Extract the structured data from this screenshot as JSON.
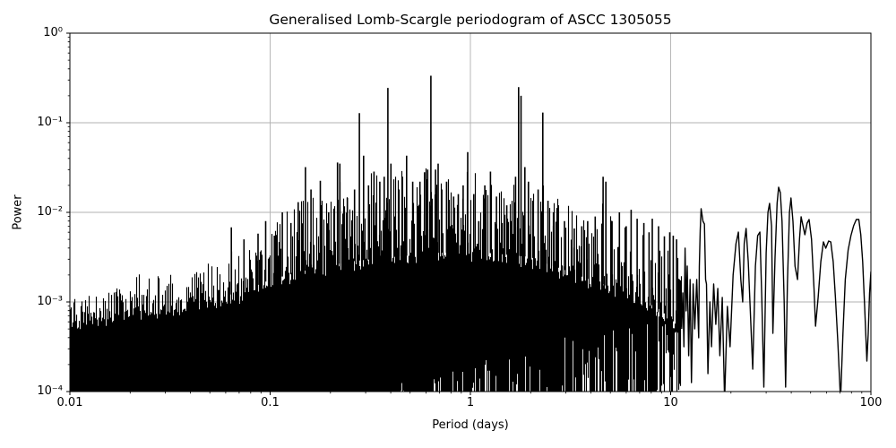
{
  "chart_data": {
    "type": "line",
    "title": "Generalised Lomb-Scargle periodogram of ASCC 1305055",
    "xlabel": "Period (days)",
    "ylabel": "Power",
    "xscale": "log",
    "yscale": "log",
    "xlim": [
      0.01,
      100
    ],
    "ylim": [
      0.0001,
      1.0
    ],
    "grid": true,
    "background": "#ffffff",
    "line_color": "#000000",
    "grid_color": "#b0b0b0",
    "x_ticks": [
      {
        "value": 0.01,
        "label": "0.01"
      },
      {
        "value": 0.1,
        "label": "0.1"
      },
      {
        "value": 1,
        "label": "1"
      },
      {
        "value": 10,
        "label": "10"
      },
      {
        "value": 100,
        "label": "100"
      }
    ],
    "y_ticks": [
      {
        "value": 1,
        "label": "10⁰"
      },
      {
        "value": 0.1,
        "label": "10⁻¹"
      },
      {
        "value": 0.01,
        "label": "10⁻²"
      },
      {
        "value": 0.001,
        "label": "10⁻³"
      },
      {
        "value": 0.0001,
        "label": "10⁻⁴"
      }
    ],
    "strongest_peak": {
      "period_days": 0.635,
      "power": 0.335
    },
    "main_peaks": [
      [
        0.064,
        0.0068
      ],
      [
        0.074,
        0.005
      ],
      [
        0.087,
        0.0058
      ],
      [
        0.095,
        0.008
      ],
      [
        0.105,
        0.0055
      ],
      [
        0.115,
        0.01
      ],
      [
        0.127,
        0.0076
      ],
      [
        0.138,
        0.013
      ],
      [
        0.15,
        0.032
      ],
      [
        0.16,
        0.018
      ],
      [
        0.178,
        0.0225
      ],
      [
        0.196,
        0.01
      ],
      [
        0.217,
        0.036
      ],
      [
        0.223,
        0.035
      ],
      [
        0.243,
        0.0145
      ],
      [
        0.264,
        0.018
      ],
      [
        0.279,
        0.128
      ],
      [
        0.293,
        0.043
      ],
      [
        0.31,
        0.02
      ],
      [
        0.33,
        0.0285
      ],
      [
        0.353,
        0.022
      ],
      [
        0.371,
        0.025
      ],
      [
        0.387,
        0.245
      ],
      [
        0.401,
        0.035
      ],
      [
        0.42,
        0.009
      ],
      [
        0.44,
        0.018
      ],
      [
        0.458,
        0.025
      ],
      [
        0.48,
        0.043
      ],
      [
        0.515,
        0.022
      ],
      [
        0.56,
        0.022
      ],
      [
        0.59,
        0.028
      ],
      [
        0.612,
        0.03
      ],
      [
        0.635,
        0.335
      ],
      [
        0.67,
        0.03
      ],
      [
        0.69,
        0.035
      ],
      [
        0.72,
        0.018
      ],
      [
        0.76,
        0.022
      ],
      [
        0.825,
        0.015
      ],
      [
        0.87,
        0.016
      ],
      [
        0.92,
        0.02
      ],
      [
        0.97,
        0.047
      ],
      [
        1.04,
        0.016
      ],
      [
        1.1,
        0.008
      ],
      [
        1.18,
        0.02
      ],
      [
        1.26,
        0.0285
      ],
      [
        1.35,
        0.015
      ],
      [
        1.44,
        0.0076
      ],
      [
        1.52,
        0.012
      ],
      [
        1.6,
        0.008
      ],
      [
        1.68,
        0.025
      ],
      [
        1.74,
        0.25
      ],
      [
        1.79,
        0.2
      ],
      [
        1.87,
        0.032
      ],
      [
        1.95,
        0.022
      ],
      [
        2.05,
        0.0135
      ],
      [
        2.18,
        0.018
      ],
      [
        2.3,
        0.13
      ],
      [
        2.44,
        0.0135
      ],
      [
        2.6,
        0.01
      ],
      [
        2.75,
        0.012
      ],
      [
        2.95,
        0.008
      ],
      [
        3.3,
        0.0066
      ],
      [
        3.6,
        0.007
      ],
      [
        3.85,
        0.008
      ],
      [
        4.2,
        0.009
      ],
      [
        4.6,
        0.025
      ],
      [
        4.75,
        0.022
      ],
      [
        5.1,
        0.008
      ],
      [
        5.55,
        0.01
      ],
      [
        6.0,
        0.007
      ],
      [
        6.35,
        0.0107
      ],
      [
        6.8,
        0.0085
      ],
      [
        7.35,
        0.0076
      ],
      [
        7.8,
        0.006
      ],
      [
        8.1,
        0.0085
      ],
      [
        8.7,
        0.007
      ],
      [
        9.3,
        0.0054
      ],
      [
        9.9,
        0.006
      ],
      [
        10.3,
        0.0055
      ],
      [
        10.7,
        0.005
      ]
    ],
    "noise_envelope_log10": [
      [
        0.01,
        -2.95
      ],
      [
        0.016,
        -2.85
      ],
      [
        0.021,
        -2.7
      ],
      [
        0.03,
        -2.68
      ],
      [
        0.045,
        -2.58
      ],
      [
        0.06,
        -2.42
      ],
      [
        0.08,
        -2.38
      ],
      [
        0.1,
        -2.15
      ],
      [
        0.13,
        -1.95
      ],
      [
        0.165,
        -1.78
      ],
      [
        0.21,
        -1.65
      ],
      [
        0.27,
        -1.6
      ],
      [
        0.35,
        -1.55
      ],
      [
        0.45,
        -1.5
      ],
      [
        0.6,
        -1.52
      ],
      [
        0.75,
        -1.62
      ],
      [
        0.95,
        -1.55
      ],
      [
        1.2,
        -1.62
      ],
      [
        1.55,
        -1.58
      ],
      [
        1.9,
        -1.63
      ],
      [
        2.3,
        -1.7
      ],
      [
        2.8,
        -1.85
      ],
      [
        3.5,
        -1.95
      ],
      [
        4.5,
        -1.9
      ],
      [
        5.5,
        -2.0
      ],
      [
        7.0,
        -2.15
      ],
      [
        8.5,
        -2.2
      ],
      [
        10.0,
        -2.25
      ],
      [
        11.35,
        -2.4
      ]
    ],
    "noise_fill_log10": [
      [
        0.01,
        -3.3
      ],
      [
        0.02,
        -3.2
      ],
      [
        0.04,
        -3.1
      ],
      [
        0.07,
        -3.0
      ],
      [
        0.1,
        -2.85
      ],
      [
        0.15,
        -2.75
      ],
      [
        0.25,
        -2.65
      ],
      [
        0.4,
        -2.6
      ],
      [
        0.7,
        -2.55
      ],
      [
        1.2,
        -2.55
      ],
      [
        2.0,
        -2.6
      ],
      [
        3.0,
        -2.75
      ],
      [
        4.5,
        -2.9
      ],
      [
        6.5,
        -3.0
      ],
      [
        9.0,
        -3.2
      ],
      [
        11.35,
        -3.4
      ]
    ],
    "smooth_series_log10": [
      [
        11.35,
        -3.3
      ],
      [
        11.5,
        -2.9
      ],
      [
        11.65,
        -3.5
      ],
      [
        11.8,
        -2.4
      ],
      [
        11.95,
        -3.1
      ],
      [
        12.1,
        -2.6
      ],
      [
        12.3,
        -3.6
      ],
      [
        12.5,
        -2.75
      ],
      [
        12.7,
        -3.9
      ],
      [
        12.95,
        -2.8
      ],
      [
        13.2,
        -3.3
      ],
      [
        13.5,
        -2.75
      ],
      [
        13.8,
        -3.4
      ],
      [
        13.9,
        -2.6
      ],
      [
        14.05,
        -2.2
      ],
      [
        14.2,
        -1.96
      ],
      [
        14.5,
        -2.1
      ],
      [
        14.75,
        -2.13
      ],
      [
        14.95,
        -2.75
      ],
      [
        15.1,
        -2.8
      ],
      [
        15.35,
        -3.8
      ],
      [
        15.7,
        -3.0
      ],
      [
        16.0,
        -3.5
      ],
      [
        16.4,
        -2.8
      ],
      [
        16.8,
        -3.25
      ],
      [
        17.2,
        -2.85
      ],
      [
        17.6,
        -3.6
      ],
      [
        18.1,
        -2.95
      ],
      [
        18.6,
        -4.1
      ],
      [
        19.2,
        -3.05
      ],
      [
        19.8,
        -3.5
      ],
      [
        20.5,
        -2.7
      ],
      [
        21.2,
        -2.35
      ],
      [
        21.8,
        -2.22
      ],
      [
        22.4,
        -2.75
      ],
      [
        22.9,
        -3.0
      ],
      [
        23.3,
        -2.35
      ],
      [
        23.8,
        -2.18
      ],
      [
        24.4,
        -2.55
      ],
      [
        25.0,
        -3.1
      ],
      [
        25.7,
        -3.75
      ],
      [
        26.5,
        -2.6
      ],
      [
        27.2,
        -2.26
      ],
      [
        27.9,
        -2.22
      ],
      [
        28.5,
        -2.95
      ],
      [
        29.2,
        -3.95
      ],
      [
        30.0,
        -2.45
      ],
      [
        30.6,
        -2.0
      ],
      [
        31.2,
        -1.9
      ],
      [
        31.9,
        -2.15
      ],
      [
        32.4,
        -3.35
      ],
      [
        33.2,
        -2.5
      ],
      [
        34.0,
        -1.9
      ],
      [
        34.6,
        -1.72
      ],
      [
        35.3,
        -1.78
      ],
      [
        36.0,
        -2.1
      ],
      [
        36.9,
        -3.0
      ],
      [
        37.5,
        -3.95
      ],
      [
        38.3,
        -2.8
      ],
      [
        39.2,
        -2.0
      ],
      [
        39.9,
        -1.84
      ],
      [
        40.8,
        -2.1
      ],
      [
        41.8,
        -2.6
      ],
      [
        43.0,
        -2.75
      ],
      [
        44.0,
        -2.3
      ],
      [
        44.8,
        -2.05
      ],
      [
        45.8,
        -2.15
      ],
      [
        46.8,
        -2.25
      ],
      [
        48.0,
        -2.12
      ],
      [
        49.1,
        -2.08
      ],
      [
        50.5,
        -2.3
      ],
      [
        52.0,
        -2.85
      ],
      [
        52.9,
        -3.27
      ],
      [
        54.5,
        -2.95
      ],
      [
        56.2,
        -2.55
      ],
      [
        57.9,
        -2.33
      ],
      [
        59.5,
        -2.4
      ],
      [
        61.5,
        -2.32
      ],
      [
        63.0,
        -2.33
      ],
      [
        64.8,
        -2.55
      ],
      [
        66.5,
        -2.95
      ],
      [
        68.4,
        -3.45
      ],
      [
        70.5,
        -4.1
      ],
      [
        72.5,
        -3.35
      ],
      [
        74.5,
        -2.75
      ],
      [
        77.0,
        -2.42
      ],
      [
        79.5,
        -2.26
      ],
      [
        82.0,
        -2.15
      ],
      [
        84.5,
        -2.08
      ],
      [
        87.0,
        -2.08
      ],
      [
        89.0,
        -2.25
      ],
      [
        91.0,
        -2.55
      ],
      [
        93.0,
        -3.05
      ],
      [
        95.5,
        -3.66
      ],
      [
        97.0,
        -3.35
      ],
      [
        98.5,
        -2.9
      ],
      [
        100.0,
        -2.66
      ]
    ]
  }
}
